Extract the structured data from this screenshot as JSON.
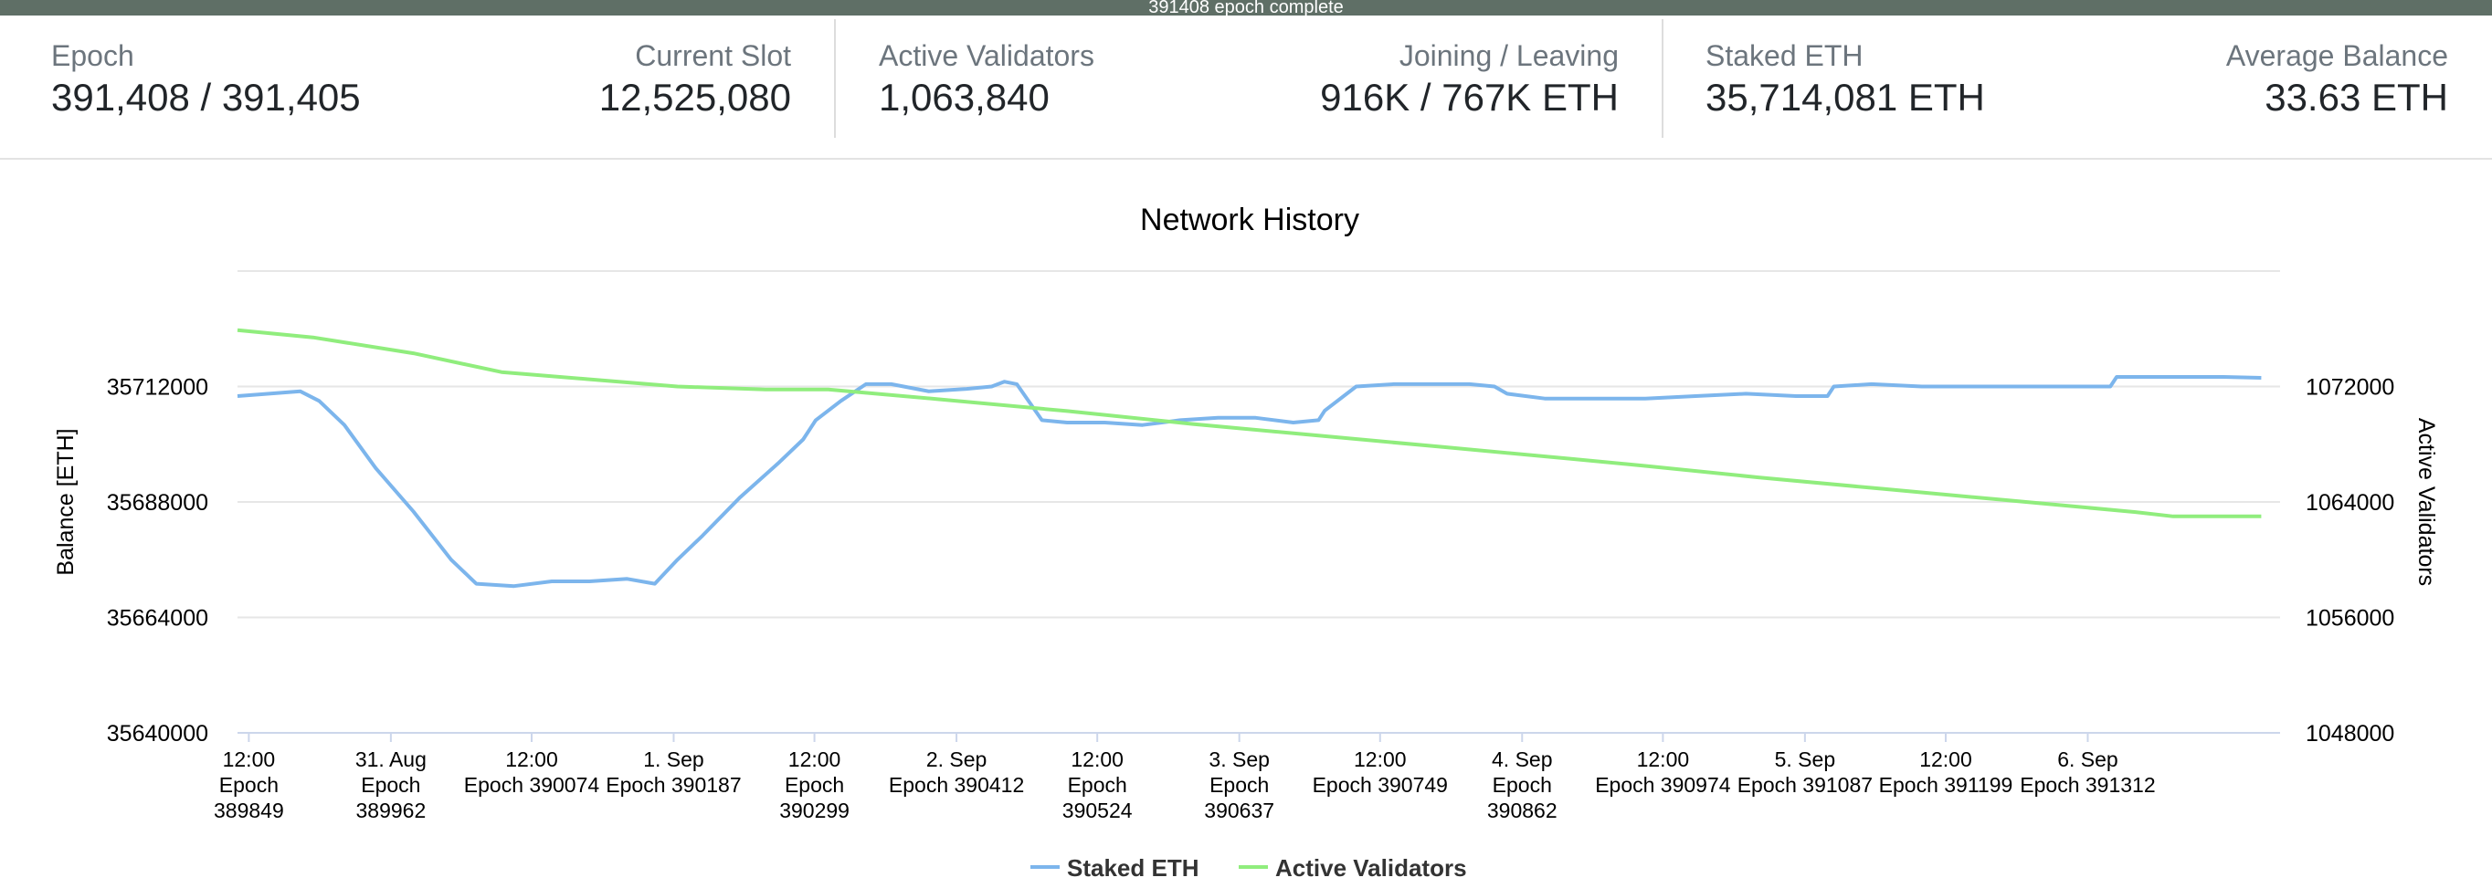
{
  "status": {
    "message": "391408 epoch complete"
  },
  "stats": {
    "epoch": {
      "label": "Epoch",
      "value": "391,408 / 391,405"
    },
    "current_slot": {
      "label": "Current Slot",
      "value": "12,525,080"
    },
    "active_validators": {
      "label": "Active Validators",
      "value": "1,063,840"
    },
    "joining_leaving": {
      "label": "Joining / Leaving",
      "value": "916K / 767K ETH"
    },
    "staked_eth": {
      "label": "Staked ETH",
      "value": "35,714,081 ETH"
    },
    "average_balance": {
      "label": "Average Balance",
      "value": "33.63 ETH"
    }
  },
  "colors": {
    "status_bar": "#5f6f66",
    "staked_eth": "#7cb5ec",
    "active_validators": "#90ed7d",
    "grid": "#e6e6e6"
  },
  "chart_data": {
    "type": "line",
    "title": "Network History",
    "ylabel": "Balance [ETH]",
    "y2label": "Active Validators",
    "ylim": [
      35640000,
      35736000
    ],
    "y2lim": [
      1048000,
      1080000
    ],
    "yticks": [
      "35640000",
      "35664000",
      "35688000",
      "35712000"
    ],
    "y2ticks": [
      "1048000",
      "1056000",
      "1064000",
      "1072000"
    ],
    "xlim": [
      389840,
      391465
    ],
    "xticks": [
      {
        "epoch": 389849,
        "line1": "12:00",
        "line2": "Epoch",
        "line3": "389849"
      },
      {
        "epoch": 389962,
        "line1": "31. Aug",
        "line2": "Epoch",
        "line3": "389962"
      },
      {
        "epoch": 390074,
        "line1": "12:00",
        "line2": "Epoch 390074",
        "line3": ""
      },
      {
        "epoch": 390187,
        "line1": "1. Sep",
        "line2": "Epoch 390187",
        "line3": ""
      },
      {
        "epoch": 390299,
        "line1": "12:00",
        "line2": "Epoch",
        "line3": "390299"
      },
      {
        "epoch": 390412,
        "line1": "2. Sep",
        "line2": "Epoch 390412",
        "line3": ""
      },
      {
        "epoch": 390524,
        "line1": "12:00",
        "line2": "Epoch",
        "line3": "390524"
      },
      {
        "epoch": 390637,
        "line1": "3. Sep",
        "line2": "Epoch",
        "line3": "390637"
      },
      {
        "epoch": 390749,
        "line1": "12:00",
        "line2": "Epoch 390749",
        "line3": ""
      },
      {
        "epoch": 390862,
        "line1": "4. Sep",
        "line2": "Epoch",
        "line3": "390862"
      },
      {
        "epoch": 390974,
        "line1": "12:00",
        "line2": "Epoch 390974",
        "line3": ""
      },
      {
        "epoch": 391087,
        "line1": "5. Sep",
        "line2": "Epoch 391087",
        "line3": ""
      },
      {
        "epoch": 391199,
        "line1": "12:00",
        "line2": "Epoch 391199",
        "line3": ""
      },
      {
        "epoch": 391312,
        "line1": "6. Sep",
        "line2": "Epoch 391312",
        "line3": ""
      }
    ],
    "grid": true,
    "legend": "bottom-center",
    "series": [
      {
        "name": "Staked ETH",
        "axis": "left",
        "x": [
          389840,
          389890,
          389905,
          389925,
          389950,
          389980,
          390010,
          390030,
          390060,
          390090,
          390120,
          390150,
          390172,
          390190,
          390210,
          390240,
          390270,
          390290,
          390300,
          390320,
          390340,
          390360,
          390390,
          390420,
          390440,
          390450,
          390460,
          390480,
          390500,
          390530,
          390560,
          390590,
          390620,
          390650,
          390680,
          390700,
          390705,
          390730,
          390760,
          390790,
          390820,
          390840,
          390850,
          390880,
          390920,
          390960,
          391000,
          391040,
          391080,
          391105,
          391110,
          391140,
          391180,
          391220,
          391260,
          391300,
          391330,
          391335,
          391380,
          391420,
          391450
        ],
        "values": [
          35710000,
          35711000,
          35709000,
          35704000,
          35695000,
          35686000,
          35676000,
          35671000,
          35670500,
          35671500,
          35671500,
          35672000,
          35671000,
          35676000,
          35681000,
          35689000,
          35696000,
          35701000,
          35705000,
          35709000,
          35712500,
          35712500,
          35711000,
          35711500,
          35712000,
          35713000,
          35712500,
          35705000,
          35704500,
          35704500,
          35704000,
          35705000,
          35705500,
          35705500,
          35704500,
          35705000,
          35707000,
          35712000,
          35712500,
          35712500,
          35712500,
          35712000,
          35710500,
          35709500,
          35709500,
          35709500,
          35710000,
          35710500,
          35710000,
          35710000,
          35712000,
          35712500,
          35712000,
          35712000,
          35712000,
          35712000,
          35712000,
          35714000,
          35714000,
          35714000,
          35713800
        ]
      },
      {
        "name": "Active Validators",
        "axis": "right",
        "x": [
          389840,
          389900,
          389980,
          390050,
          390120,
          390190,
          390260,
          390310,
          390400,
          390500,
          390600,
          390700,
          390800,
          390900,
          390960,
          391050,
          391150,
          391250,
          391350,
          391380,
          391450
        ],
        "values": [
          1075900,
          1075400,
          1074300,
          1073000,
          1072500,
          1072000,
          1071800,
          1071800,
          1071100,
          1070300,
          1069400,
          1068600,
          1067800,
          1067000,
          1066500,
          1065700,
          1064900,
          1064100,
          1063300,
          1063000,
          1063000
        ]
      }
    ]
  }
}
